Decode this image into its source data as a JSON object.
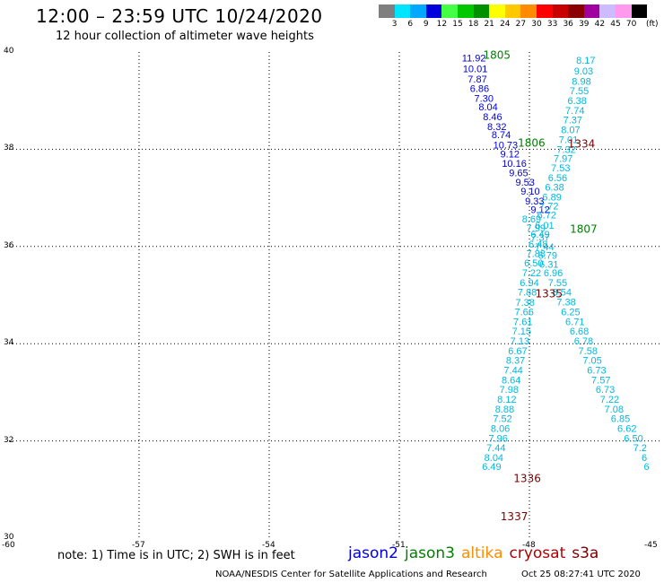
{
  "header": {
    "title": "12:00 – 23:59 UTC 10/24/2020",
    "subtitle": "12 hour collection of altimeter wave heights"
  },
  "colorbar": {
    "colors": [
      "#7f7f7f",
      "#00e5ff",
      "#00a8ff",
      "#0000dd",
      "#44ff44",
      "#00c800",
      "#009000",
      "#ffff00",
      "#ffc800",
      "#ff8c00",
      "#ff0000",
      "#c80000",
      "#8b0000",
      "#a000a0",
      "#ccbbff",
      "#ff99ee",
      "#000000"
    ],
    "ticks": [
      "3",
      "6",
      "9",
      "12",
      "15",
      "18",
      "21",
      "24",
      "27",
      "30",
      "33",
      "36",
      "39",
      "42",
      "45",
      "70"
    ],
    "unit": "(ft)"
  },
  "axes": {
    "x_ticks": [
      "-60",
      "-57",
      "-54",
      "-51",
      "-48",
      "-45"
    ],
    "y_ticks": [
      "40",
      "38",
      "36",
      "34",
      "32",
      "30"
    ]
  },
  "note": "note:  1) Time is in UTC;  2) SWH is in feet",
  "legend": [
    {
      "label": "jason2",
      "color": "#0000dd"
    },
    {
      "label": "jason3",
      "color": "#008000"
    },
    {
      "label": "altika",
      "color": "#ff8c00"
    },
    {
      "label": "cryosat",
      "color": "#b00000"
    },
    {
      "label": "s3a",
      "color": "#7a0000"
    }
  ],
  "footer": {
    "left": "NOAA/NESDIS Center for Satellite Applications and Research",
    "right": "Oct 25 08:27:41 UTC 2020"
  },
  "chart_data": {
    "type": "scatter",
    "xlim": [
      -60,
      -45
    ],
    "ylim": [
      30,
      40
    ],
    "grid": true,
    "series": [
      {
        "name": "jason2",
        "color": "#0000dd",
        "points": [
          {
            "x": -49.28,
            "y": 39.86,
            "v": "11.92"
          },
          {
            "x": -49.25,
            "y": 39.64,
            "v": "10.01"
          },
          {
            "x": -49.2,
            "y": 39.43,
            "v": "7.87"
          },
          {
            "x": -49.15,
            "y": 39.23,
            "v": "6.86"
          },
          {
            "x": -49.05,
            "y": 39.03,
            "v": "7.30"
          },
          {
            "x": -48.95,
            "y": 38.85,
            "v": "8.04"
          },
          {
            "x": -48.85,
            "y": 38.65,
            "v": "8.46"
          },
          {
            "x": -48.75,
            "y": 38.45,
            "v": "8.32"
          },
          {
            "x": -48.65,
            "y": 38.28,
            "v": "8.74"
          },
          {
            "x": -48.55,
            "y": 38.07,
            "v": "10.73"
          },
          {
            "x": -48.45,
            "y": 37.89,
            "v": "9.12"
          },
          {
            "x": -48.35,
            "y": 37.69,
            "v": "10.16"
          },
          {
            "x": -48.25,
            "y": 37.5,
            "v": "9.65"
          },
          {
            "x": -48.1,
            "y": 37.3,
            "v": "9.53"
          },
          {
            "x": -47.98,
            "y": 37.12,
            "v": "9.10"
          },
          {
            "x": -47.88,
            "y": 36.92,
            "v": "9.33"
          },
          {
            "x": -47.75,
            "y": 36.74,
            "v": "9.12"
          }
        ]
      },
      {
        "name": "",
        "color": "#00b8e0",
        "points": [
          {
            "x": -46.7,
            "y": 39.81,
            "v": "8.17"
          },
          {
            "x": -46.75,
            "y": 39.59,
            "v": "9.03"
          },
          {
            "x": -46.8,
            "y": 39.38,
            "v": "8.98"
          },
          {
            "x": -46.85,
            "y": 39.19,
            "v": "7.55"
          },
          {
            "x": -46.9,
            "y": 38.98,
            "v": "6.38"
          },
          {
            "x": -46.95,
            "y": 38.78,
            "v": "7.74"
          },
          {
            "x": -47.0,
            "y": 38.59,
            "v": "7.37"
          },
          {
            "x": -47.05,
            "y": 38.38,
            "v": "8.07"
          },
          {
            "x": -47.1,
            "y": 38.18,
            "v": "7.01"
          },
          {
            "x": -47.15,
            "y": 37.98,
            "v": "7.32"
          },
          {
            "x": -47.22,
            "y": 37.79,
            "v": "7.97"
          },
          {
            "x": -47.28,
            "y": 37.6,
            "v": "7.53"
          },
          {
            "x": -47.35,
            "y": 37.4,
            "v": "6.56"
          },
          {
            "x": -47.42,
            "y": 37.2,
            "v": "6.38"
          },
          {
            "x": -47.48,
            "y": 37.0,
            "v": "6.89"
          },
          {
            "x": -47.55,
            "y": 36.82,
            "v": "7.72"
          },
          {
            "x": -47.6,
            "y": 36.63,
            "v": "6.72"
          },
          {
            "x": -47.65,
            "y": 36.42,
            "v": "6.01"
          },
          {
            "x": -47.75,
            "y": 36.23,
            "v": "6.49"
          },
          {
            "x": -47.8,
            "y": 36.03,
            "v": "6.48"
          },
          {
            "x": -47.85,
            "y": 35.84,
            "v": "7.88"
          },
          {
            "x": -47.9,
            "y": 35.64,
            "v": "6.50"
          },
          {
            "x": -47.95,
            "y": 35.44,
            "v": "7.22"
          },
          {
            "x": -48.0,
            "y": 35.24,
            "v": "6.94"
          },
          {
            "x": -48.05,
            "y": 35.04,
            "v": "7.88"
          },
          {
            "x": -48.1,
            "y": 34.83,
            "v": "7.38"
          },
          {
            "x": -48.12,
            "y": 34.64,
            "v": "7.66"
          },
          {
            "x": -48.15,
            "y": 34.44,
            "v": "7.61"
          },
          {
            "x": -48.18,
            "y": 34.24,
            "v": "7.15"
          },
          {
            "x": -48.22,
            "y": 34.04,
            "v": "7.13"
          },
          {
            "x": -48.27,
            "y": 33.84,
            "v": "6.67"
          },
          {
            "x": -48.32,
            "y": 33.64,
            "v": "8.37"
          },
          {
            "x": -48.37,
            "y": 33.44,
            "v": "7.44"
          },
          {
            "x": -48.42,
            "y": 33.24,
            "v": "8.64"
          },
          {
            "x": -48.47,
            "y": 33.04,
            "v": "7.98"
          },
          {
            "x": -48.52,
            "y": 32.84,
            "v": "8.12"
          },
          {
            "x": -48.57,
            "y": 32.64,
            "v": "8.88"
          },
          {
            "x": -48.62,
            "y": 32.44,
            "v": "7.52"
          },
          {
            "x": -48.67,
            "y": 32.24,
            "v": "8.06"
          },
          {
            "x": -48.72,
            "y": 32.04,
            "v": "7.96"
          },
          {
            "x": -48.77,
            "y": 31.84,
            "v": "7.44"
          },
          {
            "x": -48.82,
            "y": 31.64,
            "v": "8.04"
          },
          {
            "x": -48.87,
            "y": 31.46,
            "v": "6.49"
          }
        ]
      },
      {
        "name": "",
        "color": "#00b8e0",
        "points": [
          {
            "x": -47.95,
            "y": 36.55,
            "v": "8.69"
          },
          {
            "x": -47.85,
            "y": 36.36,
            "v": "7.99"
          },
          {
            "x": -47.75,
            "y": 36.17,
            "v": "7.37"
          },
          {
            "x": -47.65,
            "y": 35.98,
            "v": "7.44"
          },
          {
            "x": -47.58,
            "y": 35.8,
            "v": "6.79"
          },
          {
            "x": -47.55,
            "y": 35.62,
            "v": "6.31"
          },
          {
            "x": -47.45,
            "y": 35.44,
            "v": "6.96"
          },
          {
            "x": -47.35,
            "y": 35.24,
            "v": "7.55"
          },
          {
            "x": -47.25,
            "y": 35.04,
            "v": "8.54"
          },
          {
            "x": -47.15,
            "y": 34.84,
            "v": "7.38"
          },
          {
            "x": -47.05,
            "y": 34.64,
            "v": "6.25"
          },
          {
            "x": -46.95,
            "y": 34.44,
            "v": "6.71"
          },
          {
            "x": -46.85,
            "y": 34.24,
            "v": "6.68"
          },
          {
            "x": -46.75,
            "y": 34.04,
            "v": "6.78"
          },
          {
            "x": -46.65,
            "y": 33.84,
            "v": "7.58"
          },
          {
            "x": -46.55,
            "y": 33.64,
            "v": "7.05"
          },
          {
            "x": -46.45,
            "y": 33.44,
            "v": "6.73"
          },
          {
            "x": -46.35,
            "y": 33.24,
            "v": "7.57"
          },
          {
            "x": -46.25,
            "y": 33.04,
            "v": "6.73"
          },
          {
            "x": -46.15,
            "y": 32.84,
            "v": "7.22"
          },
          {
            "x": -46.05,
            "y": 32.64,
            "v": "7.08"
          },
          {
            "x": -45.9,
            "y": 32.44,
            "v": "6.85"
          },
          {
            "x": -45.75,
            "y": 32.24,
            "v": "6.62"
          },
          {
            "x": -45.6,
            "y": 32.04,
            "v": "6.50"
          },
          {
            "x": -45.45,
            "y": 31.84,
            "v": "7.2"
          },
          {
            "x": -45.35,
            "y": 31.64,
            "v": "6"
          },
          {
            "x": -45.3,
            "y": 31.46,
            "v": "6"
          }
        ]
      }
    ],
    "time_labels": [
      {
        "x": -48.75,
        "y": 39.93,
        "v": "1805",
        "color": "#008000"
      },
      {
        "x": -47.95,
        "y": 38.12,
        "v": "1806",
        "color": "#008000"
      },
      {
        "x": -46.75,
        "y": 36.35,
        "v": "1807",
        "color": "#008000"
      },
      {
        "x": -46.8,
        "y": 38.1,
        "v": "1334",
        "color": "#7a0000"
      },
      {
        "x": -47.55,
        "y": 35.02,
        "v": "1335",
        "color": "#7a0000"
      },
      {
        "x": -48.05,
        "y": 31.22,
        "v": "1336",
        "color": "#7a0000"
      },
      {
        "x": -48.35,
        "y": 30.43,
        "v": "1337",
        "color": "#7a0000"
      }
    ]
  }
}
